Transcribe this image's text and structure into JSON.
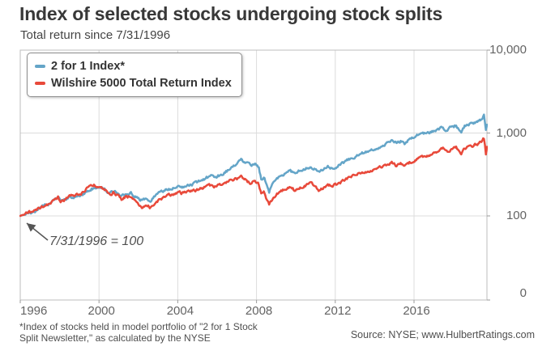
{
  "header": {
    "title": "Index of selected stocks undergoing stock splits",
    "subtitle": "Total return since 7/31/1996"
  },
  "legend": {
    "items": [
      {
        "label": "2 for 1 Index*",
        "color": "#64a5c8"
      },
      {
        "label": "Wilshire 5000 Total Return Index",
        "color": "#e8493a"
      }
    ]
  },
  "annotation": {
    "text": "7/31/1996 = 100"
  },
  "footer": {
    "footnote_line1": "*Index of stocks held in model portfolio of \"2 for 1 Stock",
    "footnote_line2": "Split Newsletter,\" as calculated by the NYSE",
    "source": "Source: NYSE; www.HulbertRatings.com"
  },
  "chart_data": {
    "type": "line",
    "title": "Index of selected stocks undergoing stock splits",
    "subtitle": "Total return since 7/31/1996",
    "base_value": 100,
    "grid": true,
    "legend_position": "top-left",
    "x_axis": {
      "tick_labels": [
        "1996",
        "2000",
        "2004",
        "2008",
        "2012",
        "2016"
      ],
      "tick_years": [
        1996.58,
        2000.58,
        2004.58,
        2008.58,
        2012.58,
        2016.58
      ],
      "range_years": [
        1996.58,
        2020.3
      ]
    },
    "y_axis": {
      "scale": "log",
      "tick_labels": [
        "10,000",
        "1,000",
        "100",
        "0"
      ],
      "tick_values": [
        10000,
        1000,
        100,
        0
      ]
    },
    "series": [
      {
        "name": "2 for 1 Index*",
        "color": "#64a5c8",
        "points": [
          [
            1996.58,
            100
          ],
          [
            1996.75,
            104
          ],
          [
            1997.0,
            110
          ],
          [
            1997.2,
            109
          ],
          [
            1997.5,
            118
          ],
          [
            1997.75,
            131
          ],
          [
            1998.0,
            136
          ],
          [
            1998.25,
            152
          ],
          [
            1998.5,
            170
          ],
          [
            1998.63,
            147
          ],
          [
            1998.8,
            153
          ],
          [
            1999.0,
            166
          ],
          [
            1999.25,
            171
          ],
          [
            1999.5,
            172
          ],
          [
            1999.75,
            181
          ],
          [
            2000.0,
            198
          ],
          [
            2000.2,
            212
          ],
          [
            2000.45,
            218
          ],
          [
            2000.7,
            218
          ],
          [
            2000.9,
            205
          ],
          [
            2001.1,
            190
          ],
          [
            2001.35,
            198
          ],
          [
            2001.55,
            185
          ],
          [
            2001.72,
            172
          ],
          [
            2001.95,
            186
          ],
          [
            2002.2,
            188
          ],
          [
            2002.5,
            168
          ],
          [
            2002.8,
            152
          ],
          [
            2003.0,
            158
          ],
          [
            2003.2,
            152
          ],
          [
            2003.5,
            178
          ],
          [
            2003.75,
            196
          ],
          [
            2004.0,
            206
          ],
          [
            2004.3,
            213
          ],
          [
            2004.6,
            228
          ],
          [
            2004.8,
            224
          ],
          [
            2005.0,
            235
          ],
          [
            2005.3,
            240
          ],
          [
            2005.6,
            258
          ],
          [
            2006.0,
            285
          ],
          [
            2006.3,
            305
          ],
          [
            2006.55,
            295
          ],
          [
            2006.9,
            330
          ],
          [
            2007.2,
            360
          ],
          [
            2007.5,
            420
          ],
          [
            2007.8,
            472
          ],
          [
            2008.0,
            440
          ],
          [
            2008.25,
            405
          ],
          [
            2008.5,
            418
          ],
          [
            2008.7,
            372
          ],
          [
            2008.82,
            278
          ],
          [
            2008.95,
            295
          ],
          [
            2009.1,
            242
          ],
          [
            2009.22,
            196
          ],
          [
            2009.45,
            262
          ],
          [
            2009.7,
            295
          ],
          [
            2010.0,
            322
          ],
          [
            2010.3,
            352
          ],
          [
            2010.55,
            318
          ],
          [
            2010.8,
            352
          ],
          [
            2011.1,
            378
          ],
          [
            2011.35,
            395
          ],
          [
            2011.6,
            362
          ],
          [
            2011.78,
            332
          ],
          [
            2011.95,
            356
          ],
          [
            2012.2,
            395
          ],
          [
            2012.45,
            382
          ],
          [
            2012.75,
            408
          ],
          [
            2013.0,
            442
          ],
          [
            2013.3,
            482
          ],
          [
            2013.6,
            522
          ],
          [
            2013.9,
            562
          ],
          [
            2014.2,
            602
          ],
          [
            2014.5,
            640
          ],
          [
            2014.75,
            662
          ],
          [
            2015.0,
            702
          ],
          [
            2015.45,
            820
          ],
          [
            2015.65,
            762
          ],
          [
            2015.9,
            792
          ],
          [
            2016.1,
            748
          ],
          [
            2016.35,
            832
          ],
          [
            2016.6,
            902
          ],
          [
            2016.9,
            952
          ],
          [
            2017.2,
            1002
          ],
          [
            2017.5,
            1052
          ],
          [
            2017.8,
            1112
          ],
          [
            2018.05,
            1192
          ],
          [
            2018.15,
            1092
          ],
          [
            2018.4,
            1142
          ],
          [
            2018.6,
            1205
          ],
          [
            2018.72,
            1252
          ],
          [
            2018.85,
            1105
          ],
          [
            2018.98,
            1002
          ],
          [
            2019.15,
            1205
          ],
          [
            2019.4,
            1302
          ],
          [
            2019.6,
            1325
          ],
          [
            2019.8,
            1385
          ],
          [
            2019.95,
            1432
          ],
          [
            2020.05,
            1502
          ],
          [
            2020.13,
            1600
          ],
          [
            2020.18,
            1302
          ],
          [
            2020.23,
            1062
          ],
          [
            2020.3,
            1262
          ]
        ]
      },
      {
        "name": "Wilshire 5000 Total Return Index",
        "color": "#e8493a",
        "points": [
          [
            1996.58,
            100
          ],
          [
            1996.75,
            105
          ],
          [
            1997.0,
            112
          ],
          [
            1997.2,
            111
          ],
          [
            1997.5,
            121
          ],
          [
            1997.75,
            133
          ],
          [
            1998.0,
            138
          ],
          [
            1998.25,
            154
          ],
          [
            1998.5,
            168
          ],
          [
            1998.63,
            145
          ],
          [
            1998.8,
            154
          ],
          [
            1999.0,
            170
          ],
          [
            1999.25,
            176
          ],
          [
            1999.5,
            180
          ],
          [
            1999.75,
            192
          ],
          [
            2000.0,
            216
          ],
          [
            2000.2,
            240
          ],
          [
            2000.45,
            230
          ],
          [
            2000.7,
            222
          ],
          [
            2000.9,
            204
          ],
          [
            2001.1,
            184
          ],
          [
            2001.35,
            192
          ],
          [
            2001.55,
            172
          ],
          [
            2001.72,
            156
          ],
          [
            2001.95,
            172
          ],
          [
            2002.2,
            170
          ],
          [
            2002.5,
            147
          ],
          [
            2002.8,
            124
          ],
          [
            2003.0,
            131
          ],
          [
            2003.2,
            126
          ],
          [
            2003.5,
            148
          ],
          [
            2003.75,
            162
          ],
          [
            2004.0,
            172
          ],
          [
            2004.3,
            178
          ],
          [
            2004.6,
            190
          ],
          [
            2004.8,
            186
          ],
          [
            2005.0,
            194
          ],
          [
            2005.3,
            196
          ],
          [
            2005.6,
            206
          ],
          [
            2006.0,
            222
          ],
          [
            2006.3,
            234
          ],
          [
            2006.55,
            226
          ],
          [
            2006.9,
            246
          ],
          [
            2007.2,
            262
          ],
          [
            2007.5,
            278
          ],
          [
            2007.8,
            290
          ],
          [
            2008.0,
            272
          ],
          [
            2008.25,
            254
          ],
          [
            2008.5,
            262
          ],
          [
            2008.7,
            236
          ],
          [
            2008.82,
            182
          ],
          [
            2008.95,
            192
          ],
          [
            2009.1,
            158
          ],
          [
            2009.22,
            134
          ],
          [
            2009.45,
            172
          ],
          [
            2009.7,
            192
          ],
          [
            2010.0,
            206
          ],
          [
            2010.3,
            224
          ],
          [
            2010.55,
            201
          ],
          [
            2010.8,
            223
          ],
          [
            2011.1,
            236
          ],
          [
            2011.35,
            246
          ],
          [
            2011.6,
            224
          ],
          [
            2011.78,
            203
          ],
          [
            2011.95,
            217
          ],
          [
            2012.2,
            240
          ],
          [
            2012.45,
            230
          ],
          [
            2012.75,
            244
          ],
          [
            2013.0,
            263
          ],
          [
            2013.3,
            288
          ],
          [
            2013.6,
            311
          ],
          [
            2013.9,
            331
          ],
          [
            2014.2,
            346
          ],
          [
            2014.5,
            359
          ],
          [
            2014.75,
            371
          ],
          [
            2015.0,
            391
          ],
          [
            2015.45,
            432
          ],
          [
            2015.65,
            406
          ],
          [
            2015.9,
            419
          ],
          [
            2016.1,
            399
          ],
          [
            2016.35,
            441
          ],
          [
            2016.6,
            466
          ],
          [
            2016.9,
            496
          ],
          [
            2017.2,
            526
          ],
          [
            2017.5,
            556
          ],
          [
            2017.8,
            591
          ],
          [
            2018.05,
            641
          ],
          [
            2018.15,
            591
          ],
          [
            2018.4,
            616
          ],
          [
            2018.6,
            651
          ],
          [
            2018.72,
            671
          ],
          [
            2018.85,
            601
          ],
          [
            2018.98,
            556
          ],
          [
            2019.15,
            646
          ],
          [
            2019.4,
            691
          ],
          [
            2019.6,
            706
          ],
          [
            2019.8,
            736
          ],
          [
            2019.95,
            766
          ],
          [
            2020.05,
            806
          ],
          [
            2020.13,
            858
          ],
          [
            2020.18,
            708
          ],
          [
            2020.23,
            548
          ],
          [
            2020.3,
            682
          ]
        ]
      }
    ]
  }
}
